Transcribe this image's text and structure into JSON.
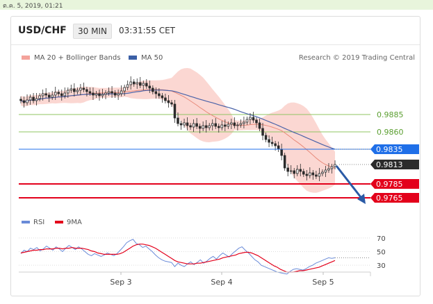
{
  "timestamp": "ต.ค. 5, 2019, 01:21",
  "header": {
    "pair": "USD/CHF",
    "timeframe": "30 MIN",
    "time": "03:31:55 CET"
  },
  "legend": {
    "ma20": "MA 20 + Bollinger Bands",
    "ma50": "MA 50",
    "credit": "Research © 2019 Trading Central"
  },
  "rsi_legend": {
    "rsi": "RSI",
    "ma9": "9MA"
  },
  "colors": {
    "support": "#e3001b",
    "pivot": "#1f6fe8",
    "resistance": "#8fc561",
    "ma20": "#e88a7a",
    "band": "#f9c9c3",
    "ma50": "#4a62a8",
    "candle": "#2b2b2b",
    "rsi": "#6a8bd8",
    "ma9": "#e3001b"
  },
  "chart_data": [
    {
      "type": "candlestick",
      "title": "USD/CHF 30 MIN",
      "x_ticks": [
        "Sep 3",
        "Sep 4",
        "Sep 5"
      ],
      "ylim": [
        0.9748,
        0.9955
      ],
      "price_current": 0.9813,
      "levels": [
        {
          "label": "0.9885",
          "value": 0.9885,
          "kind": "resistance"
        },
        {
          "label": "0.9860",
          "value": 0.986,
          "kind": "resistance"
        },
        {
          "label": "0.9835",
          "value": 0.9835,
          "kind": "pivot"
        },
        {
          "label": "0.9813",
          "value": 0.9813,
          "kind": "last"
        },
        {
          "label": "0.9785",
          "value": 0.9785,
          "kind": "support"
        },
        {
          "label": "0.9765",
          "value": 0.9765,
          "kind": "support"
        }
      ],
      "closes": [
        0.9905,
        0.9902,
        0.9906,
        0.991,
        0.9905,
        0.9908,
        0.9912,
        0.9915,
        0.9913,
        0.991,
        0.9913,
        0.9917,
        0.9915,
        0.9912,
        0.9916,
        0.992,
        0.9922,
        0.9918,
        0.992,
        0.9923,
        0.9921,
        0.9918,
        0.9916,
        0.9913,
        0.9915,
        0.9912,
        0.9914,
        0.9916,
        0.9918,
        0.9916,
        0.9913,
        0.9915,
        0.9919,
        0.9924,
        0.9928,
        0.9932,
        0.9929,
        0.9931,
        0.9927,
        0.993,
        0.9926,
        0.9923,
        0.9918,
        0.9915,
        0.9912,
        0.9909,
        0.9905,
        0.9902,
        0.99,
        0.988,
        0.9872,
        0.987,
        0.9873,
        0.9869,
        0.9867,
        0.9872,
        0.9868,
        0.9865,
        0.9869,
        0.9866,
        0.9869,
        0.9872,
        0.9868,
        0.9866,
        0.987,
        0.9868,
        0.9871,
        0.9873,
        0.9869,
        0.987,
        0.9872,
        0.9874,
        0.9878,
        0.9881,
        0.9877,
        0.9873,
        0.9865,
        0.9855,
        0.9849,
        0.9845,
        0.9843,
        0.984,
        0.9835,
        0.9826,
        0.9808,
        0.9803,
        0.9804,
        0.98,
        0.9806,
        0.9803,
        0.9799,
        0.9797,
        0.9801,
        0.9798,
        0.9796,
        0.98,
        0.9802,
        0.9805,
        0.9807,
        0.981,
        0.9813
      ],
      "ma50_end": 0.9835,
      "rsi": {
        "ylim": [
          20,
          80
        ],
        "ticks": [
          70,
          50,
          30
        ],
        "values": [
          47,
          52,
          50,
          55,
          53,
          56,
          51,
          54,
          58,
          55,
          52,
          57,
          54,
          50,
          55,
          59,
          56,
          53,
          57,
          54,
          50,
          46,
          44,
          47,
          45,
          43,
          45,
          48,
          46,
          44,
          47,
          52,
          57,
          63,
          66,
          68,
          62,
          60,
          56,
          58,
          54,
          50,
          45,
          41,
          38,
          36,
          35,
          34,
          28,
          33,
          30,
          28,
          32,
          35,
          31,
          34,
          38,
          33,
          36,
          40,
          43,
          39,
          44,
          48,
          45,
          42,
          47,
          51,
          55,
          57,
          52,
          48,
          43,
          38,
          35,
          30,
          28,
          26,
          24,
          22,
          20,
          19,
          18,
          17,
          21,
          24,
          25,
          24,
          23,
          25,
          28,
          30,
          33,
          35,
          37,
          39,
          41,
          40,
          41
        ],
        "ma9": [
          48,
          49,
          50,
          51,
          52,
          52,
          53,
          53,
          54,
          54,
          54,
          55,
          55,
          54,
          55,
          55,
          56,
          55,
          55,
          55,
          54,
          53,
          51,
          50,
          48,
          47,
          46,
          46,
          46,
          46,
          46,
          47,
          49,
          52,
          55,
          58,
          60,
          61,
          61,
          60,
          59,
          57,
          55,
          52,
          49,
          46,
          43,
          40,
          37,
          35,
          34,
          33,
          32,
          32,
          32,
          33,
          33,
          34,
          35,
          36,
          37,
          38,
          39,
          41,
          42,
          43,
          44,
          45,
          47,
          48,
          49,
          49,
          48,
          46,
          44,
          41,
          38,
          35,
          32,
          29,
          27,
          24,
          22,
          20,
          20,
          20,
          21,
          22,
          22,
          23,
          24,
          25,
          26,
          27,
          29,
          31,
          33,
          35,
          37
        ]
      },
      "xlabel": "",
      "ylabel": ""
    }
  ]
}
